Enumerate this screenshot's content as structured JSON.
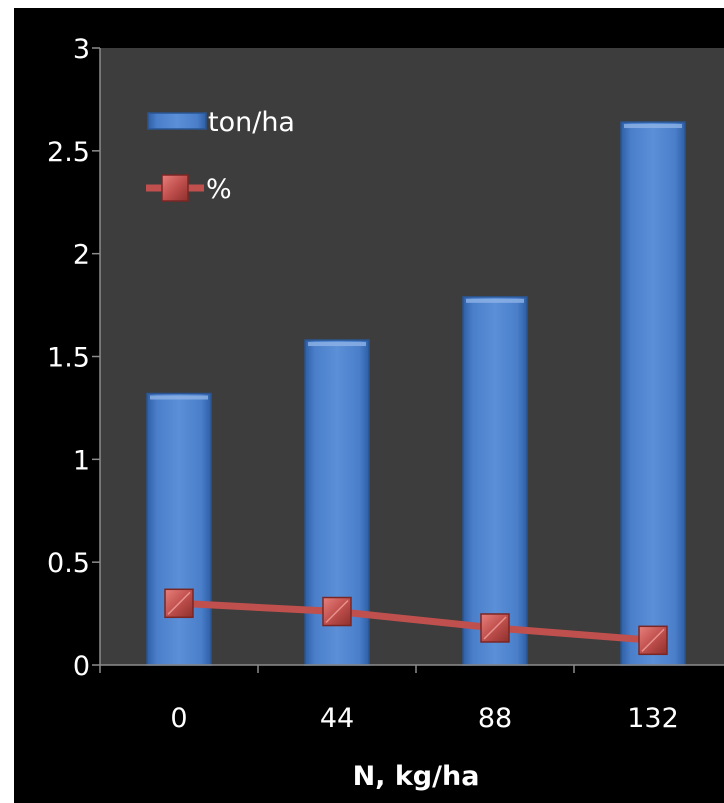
{
  "chart_data": {
    "type": "bar",
    "categories": [
      "0",
      "44",
      "88",
      "132"
    ],
    "series": [
      {
        "name": "ton/ha",
        "type": "bar",
        "values": [
          1.32,
          1.58,
          1.79,
          2.64
        ]
      },
      {
        "name": "%",
        "type": "line",
        "values": [
          0.3,
          0.26,
          0.18,
          0.12
        ]
      }
    ],
    "title": "",
    "xlabel": "N, kg/ha",
    "ylabel": "",
    "ylim": [
      0,
      3
    ],
    "yticks": [
      "0",
      "0.5",
      "1",
      "1.5",
      "2",
      "2.5",
      "3"
    ],
    "grid": false,
    "legend_position": "top-left",
    "colors": {
      "outer_background": "#000000",
      "plot_background": "#3d3d3d",
      "bar": "#4a7ec9",
      "line": "#c0504d",
      "marker": "#d9534f",
      "text": "#ffffff"
    }
  }
}
